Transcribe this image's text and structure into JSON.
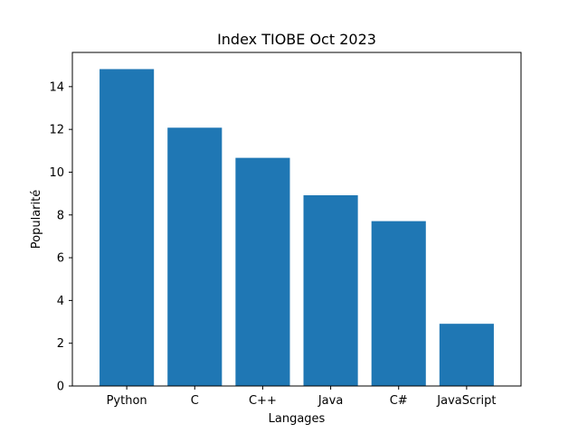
{
  "chart_data": {
    "type": "bar",
    "title": "Index TIOBE Oct 2023",
    "xlabel": "Langages",
    "ylabel": "Popularité",
    "categories": [
      "Python",
      "C",
      "C++",
      "Java",
      "C#",
      "JavaScript"
    ],
    "values": [
      14.82,
      12.08,
      10.67,
      8.92,
      7.71,
      2.91
    ],
    "ylim": [
      0,
      15.6
    ],
    "yticks": [
      0,
      2,
      4,
      6,
      8,
      10,
      12,
      14
    ],
    "bar_color": "#1f77b4",
    "grid": false,
    "legend": "none"
  }
}
